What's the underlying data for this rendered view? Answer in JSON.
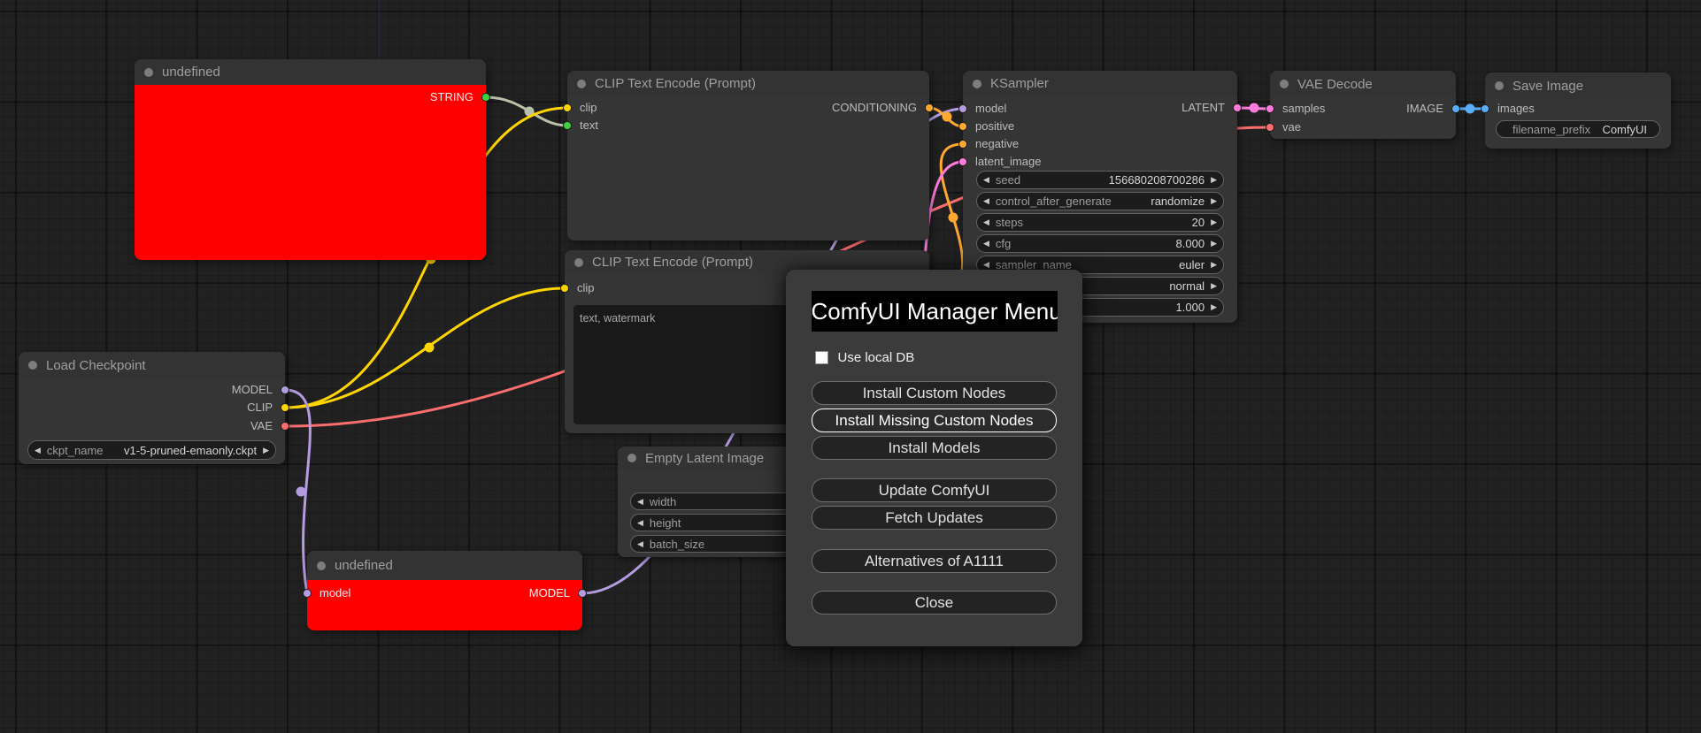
{
  "ui_colors": {
    "canvas_bg": "#212121",
    "node_bg": "#353535",
    "node_title_bg": "#333333",
    "error_node_bg": "#ff0000",
    "dialog_bg": "#3b3b3b",
    "dialog_title_bg": "#000000"
  },
  "link_colors": {
    "model": "#b49ce0",
    "clip": "#ffd500",
    "vae": "#ff6e6e",
    "conditioning": "#ffa931",
    "latent": "#ff7bdc",
    "image": "#58aef8",
    "string": "#b9bfa8",
    "string_dot": "#3fd13f"
  },
  "nodes": [
    {
      "id": "undefined-top",
      "title": "undefined",
      "body_color": "#ff0000",
      "outputs": [
        {
          "label": "STRING",
          "color": "#3fd13f",
          "label_color": "#ececec"
        }
      ]
    },
    {
      "id": "clip-text-encode-1",
      "title": "CLIP Text Encode (Prompt)",
      "inputs": [
        {
          "label": "clip",
          "color": "#ffd500"
        },
        {
          "label": "text",
          "color": "#3fd13f"
        }
      ],
      "outputs": [
        {
          "label": "CONDITIONING",
          "color": "#ffa931"
        }
      ]
    },
    {
      "id": "clip-text-encode-2",
      "title": "CLIP Text Encode (Prompt)",
      "inputs": [
        {
          "label": "clip",
          "color": "#ffd500"
        }
      ],
      "textarea": "text, watermark"
    },
    {
      "id": "ksampler",
      "title": "KSampler",
      "inputs": [
        {
          "label": "model",
          "color": "#b49ce0"
        },
        {
          "label": "positive",
          "color": "#ffa931"
        },
        {
          "label": "negative",
          "color": "#ffa931"
        },
        {
          "label": "latent_image",
          "color": "#ff7bdc"
        }
      ],
      "outputs": [
        {
          "label": "LATENT",
          "color": "#ff7bdc"
        }
      ],
      "widgets": [
        {
          "label": "seed",
          "value": "156680208700286",
          "arrows": true
        },
        {
          "label": "control_after_generate",
          "value": "randomize",
          "arrows": true
        },
        {
          "label": "steps",
          "value": "20",
          "arrows": true
        },
        {
          "label": "cfg",
          "value": "8.000",
          "arrows": true
        },
        {
          "label": "sampler_name",
          "value": "euler",
          "arrows": true
        },
        {
          "label": "",
          "value": "normal",
          "arrows": true
        },
        {
          "label": "",
          "value": "1.000",
          "arrows": true
        }
      ]
    },
    {
      "id": "vae-decode",
      "title": "VAE Decode",
      "inputs": [
        {
          "label": "samples",
          "color": "#ff7bdc"
        },
        {
          "label": "vae",
          "color": "#ff6e6e"
        }
      ],
      "outputs": [
        {
          "label": "IMAGE",
          "color": "#58aef8"
        }
      ]
    },
    {
      "id": "save-image",
      "title": "Save Image",
      "inputs": [
        {
          "label": "images",
          "color": "#58aef8"
        }
      ],
      "widgets": [
        {
          "label": "filename_prefix",
          "value": "ComfyUI",
          "arrows": false
        }
      ]
    },
    {
      "id": "load-checkpoint",
      "title": "Load Checkpoint",
      "outputs": [
        {
          "label": "MODEL",
          "color": "#b49ce0"
        },
        {
          "label": "CLIP",
          "color": "#ffd500"
        },
        {
          "label": "VAE",
          "color": "#ff6e6e"
        }
      ],
      "widgets": [
        {
          "label": "ckpt_name",
          "value": "v1-5-pruned-emaonly.ckpt",
          "arrows": true
        }
      ]
    },
    {
      "id": "empty-latent-image",
      "title": "Empty Latent Image",
      "widgets": [
        {
          "label": "width",
          "value": "",
          "arrows": true
        },
        {
          "label": "height",
          "value": "",
          "arrows": true
        },
        {
          "label": "batch_size",
          "value": "",
          "arrows": true
        }
      ]
    },
    {
      "id": "undefined-bottom",
      "title": "undefined",
      "body_color": "#ff0000",
      "inputs": [
        {
          "label": "model",
          "color": "#b49ce0",
          "label_color": "#f2e9f2"
        }
      ],
      "outputs": [
        {
          "label": "MODEL",
          "color": "#b49ce0",
          "label_color": "#f5f5f5"
        }
      ]
    }
  ],
  "dialog": {
    "title": "ComfyUI Manager Menu",
    "checkbox_label": "Use local DB",
    "checkbox_checked": false,
    "buttons": [
      "Install Custom Nodes",
      "Install Missing Custom Nodes",
      "Install Models",
      "Update ComfyUI",
      "Fetch Updates",
      "Alternatives of A1111",
      "Close"
    ],
    "highlighted_button": "Install Missing Custom Nodes"
  }
}
